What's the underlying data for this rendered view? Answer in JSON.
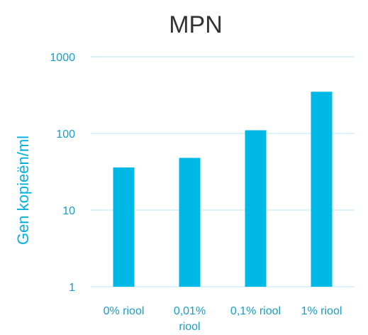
{
  "chart_data": {
    "type": "bar",
    "title": "MPN",
    "ylabel": "Gen kopieën/ml",
    "xlabel": "",
    "yscale": "log",
    "ylim": [
      1,
      1000
    ],
    "yticks": [
      1,
      10,
      100,
      1000
    ],
    "ytick_labels": [
      "1",
      "10",
      "100",
      "1000"
    ],
    "categories": [
      [
        "0% riool"
      ],
      [
        "0,01%",
        "riool"
      ],
      [
        "0,1% riool"
      ],
      [
        "1% riool"
      ]
    ],
    "values": [
      36,
      48,
      110,
      350
    ],
    "grid": true,
    "bar_color": "#00B8E6"
  }
}
